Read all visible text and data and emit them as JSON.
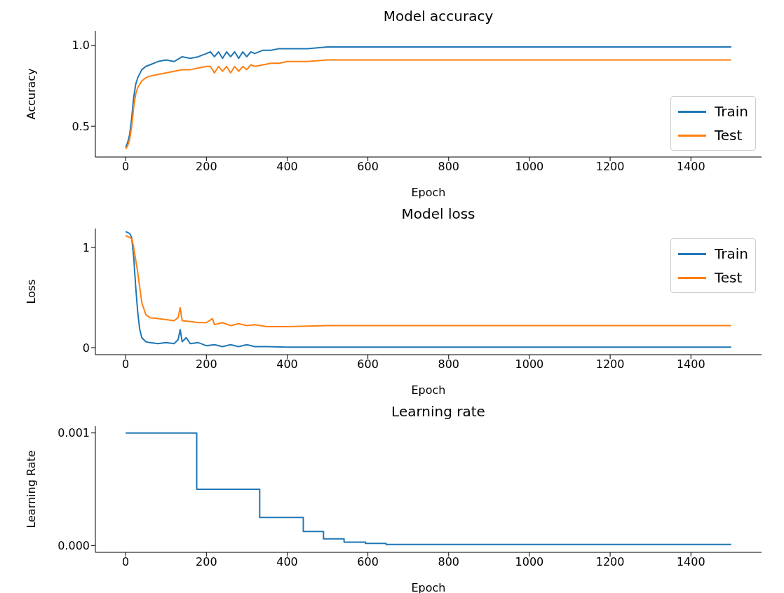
{
  "chart_data": [
    {
      "type": "line",
      "title": "Model accuracy",
      "xlabel": "Epoch",
      "ylabel": "Accuracy",
      "legend": "bottom right",
      "xlim": [
        -75,
        1575
      ],
      "xticks": [
        0,
        200,
        400,
        600,
        800,
        1000,
        1200,
        1400
      ],
      "ylim": [
        0.31,
        1.09
      ],
      "yticks": [
        {
          "value": 0.5,
          "label": "0.5"
        },
        {
          "value": 1.0,
          "label": "1.0"
        }
      ],
      "series": [
        {
          "name": "Train",
          "color": "#1f77b4",
          "x": [
            0,
            5,
            10,
            15,
            20,
            25,
            30,
            40,
            50,
            60,
            80,
            100,
            120,
            140,
            160,
            180,
            200,
            210,
            220,
            230,
            240,
            250,
            260,
            270,
            280,
            290,
            300,
            310,
            320,
            340,
            360,
            380,
            400,
            450,
            500,
            600,
            800,
            1000,
            1200,
            1500
          ],
          "values": [
            0.37,
            0.4,
            0.45,
            0.55,
            0.68,
            0.76,
            0.8,
            0.85,
            0.87,
            0.88,
            0.9,
            0.91,
            0.9,
            0.93,
            0.92,
            0.93,
            0.95,
            0.96,
            0.93,
            0.96,
            0.92,
            0.96,
            0.93,
            0.96,
            0.92,
            0.96,
            0.93,
            0.96,
            0.95,
            0.97,
            0.97,
            0.98,
            0.98,
            0.98,
            0.99,
            0.99,
            0.99,
            0.99,
            0.99,
            0.99
          ]
        },
        {
          "name": "Test",
          "color": "#ff7f0e",
          "x": [
            0,
            5,
            10,
            15,
            20,
            25,
            30,
            40,
            50,
            60,
            80,
            100,
            120,
            140,
            160,
            180,
            200,
            210,
            220,
            230,
            240,
            250,
            260,
            270,
            280,
            290,
            300,
            310,
            320,
            340,
            360,
            380,
            400,
            450,
            500,
            600,
            800,
            1000,
            1200,
            1500
          ],
          "values": [
            0.36,
            0.38,
            0.42,
            0.5,
            0.62,
            0.7,
            0.74,
            0.78,
            0.8,
            0.81,
            0.82,
            0.83,
            0.84,
            0.85,
            0.85,
            0.86,
            0.87,
            0.87,
            0.83,
            0.87,
            0.84,
            0.87,
            0.83,
            0.87,
            0.84,
            0.87,
            0.85,
            0.88,
            0.87,
            0.88,
            0.89,
            0.89,
            0.9,
            0.9,
            0.91,
            0.91,
            0.91,
            0.91,
            0.91,
            0.91
          ]
        }
      ]
    },
    {
      "type": "line",
      "title": "Model loss",
      "xlabel": "Epoch",
      "ylabel": "Loss",
      "legend": "top right",
      "xlim": [
        -75,
        1575
      ],
      "xticks": [
        0,
        200,
        400,
        600,
        800,
        1000,
        1200,
        1400
      ],
      "ylim": [
        -0.07,
        1.19
      ],
      "yticks": [
        0,
        1
      ],
      "series": [
        {
          "name": "Train",
          "color": "#1f77b4",
          "x": [
            0,
            10,
            15,
            20,
            25,
            30,
            35,
            40,
            50,
            60,
            80,
            100,
            120,
            130,
            135,
            140,
            150,
            160,
            180,
            200,
            220,
            240,
            260,
            280,
            300,
            320,
            350,
            400,
            500,
            600,
            800,
            1000,
            1200,
            1500
          ],
          "values": [
            1.16,
            1.14,
            1.1,
            0.9,
            0.6,
            0.35,
            0.18,
            0.1,
            0.06,
            0.05,
            0.04,
            0.05,
            0.04,
            0.08,
            0.18,
            0.06,
            0.1,
            0.04,
            0.05,
            0.02,
            0.03,
            0.01,
            0.03,
            0.01,
            0.03,
            0.01,
            0.01,
            0.005,
            0.005,
            0.005,
            0.005,
            0.005,
            0.005,
            0.005
          ]
        },
        {
          "name": "Test",
          "color": "#ff7f0e",
          "x": [
            0,
            10,
            15,
            20,
            30,
            40,
            50,
            60,
            80,
            100,
            120,
            130,
            135,
            140,
            160,
            180,
            200,
            215,
            220,
            240,
            260,
            280,
            300,
            320,
            350,
            400,
            500,
            600,
            800,
            1000,
            1200,
            1500
          ],
          "values": [
            1.12,
            1.1,
            1.09,
            1.0,
            0.75,
            0.45,
            0.33,
            0.3,
            0.29,
            0.28,
            0.27,
            0.3,
            0.4,
            0.27,
            0.26,
            0.25,
            0.25,
            0.29,
            0.23,
            0.25,
            0.22,
            0.24,
            0.22,
            0.23,
            0.21,
            0.21,
            0.22,
            0.22,
            0.22,
            0.22,
            0.22,
            0.22
          ]
        }
      ]
    },
    {
      "type": "step",
      "title": "Learning rate",
      "xlabel": "Epoch",
      "ylabel": "Learning Rate",
      "xlim": [
        -75,
        1575
      ],
      "xticks": [
        0,
        200,
        400,
        600,
        800,
        1000,
        1200,
        1400
      ],
      "ylim": [
        -6e-05,
        0.00106
      ],
      "yticks": [
        {
          "value": 0,
          "label": "0.000"
        },
        {
          "value": 0.001,
          "label": "0.001"
        }
      ],
      "series": [
        {
          "color": "#1f77b4",
          "x": [
            0,
            176,
            332,
            440,
            490,
            541,
            594,
            645,
            1500
          ],
          "values": [
            0.001,
            0.0005,
            0.00025,
            0.000125,
            6e-05,
            3e-05,
            2e-05,
            1e-05,
            1e-05
          ]
        }
      ]
    }
  ]
}
